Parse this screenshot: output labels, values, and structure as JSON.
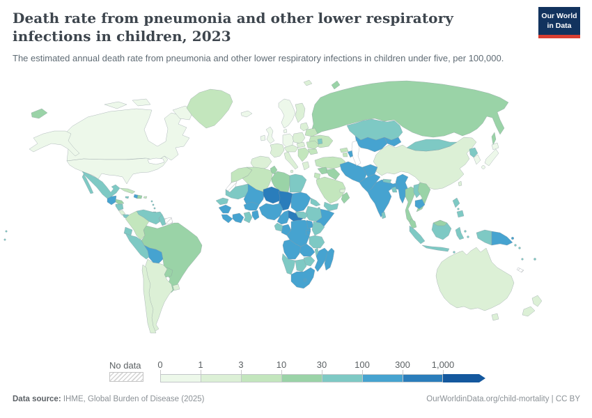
{
  "header": {
    "title": "Death rate from pneumonia and other lower respiratory infections in children, 2023",
    "subtitle": "The estimated annual death rate from pneumonia and other lower respiratory infections in children under five, per 100,000.",
    "logo": {
      "line1": "Our World",
      "line2": "in Data",
      "bg_color": "#12335e",
      "accent_color": "#d93f31"
    }
  },
  "legend": {
    "no_data_label": "No data",
    "ticks": [
      "0",
      "1",
      "3",
      "10",
      "30",
      "100",
      "300",
      "1,000"
    ]
  },
  "chart_data": {
    "type": "choropleth",
    "title": "Death rate from pneumonia and other lower respiratory infections in children, 2023",
    "unit": "deaths per 100,000 children under five",
    "year": "2023",
    "projection": "world",
    "legend_position": "bottom",
    "no_data": {
      "label": "No data",
      "pattern": "diagonal-hatch"
    },
    "bins": [
      {
        "range": "0–1",
        "color": "#edf8ea"
      },
      {
        "range": "1–3",
        "color": "#dcf0d6"
      },
      {
        "range": "3–10",
        "color": "#c3e6bd"
      },
      {
        "range": "10–30",
        "color": "#9ad3a7"
      },
      {
        "range": "30–100",
        "color": "#7ec9c4"
      },
      {
        "range": "100–300",
        "color": "#46a3d0"
      },
      {
        "range": "300–1,000",
        "color": "#2a7dbb"
      },
      {
        "range": "1,000+",
        "color": "#14589e"
      }
    ],
    "regions": [
      {
        "id": "canada",
        "bin": 0
      },
      {
        "id": "alaska",
        "bin": 0
      },
      {
        "id": "usa",
        "bin": 0
      },
      {
        "id": "greenland",
        "bin": 2
      },
      {
        "id": "iceland",
        "bin": 0
      },
      {
        "id": "chukotka-west",
        "bin": 3
      },
      {
        "id": "baja",
        "bin": 4
      },
      {
        "id": "mexico",
        "bin": 4
      },
      {
        "id": "guatemala",
        "bin": 5
      },
      {
        "id": "honduras",
        "bin": 3
      },
      {
        "id": "nicaragua",
        "bin": 4
      },
      {
        "id": "costa-rica",
        "bin": 1
      },
      {
        "id": "panama",
        "bin": 4
      },
      {
        "id": "cuba",
        "bin": 2
      },
      {
        "id": "jamaica",
        "bin": 4
      },
      {
        "id": "haiti",
        "bin": 5
      },
      {
        "id": "dominican-republic",
        "bin": 3
      },
      {
        "id": "puerto-rico",
        "bin": 2
      },
      {
        "id": "lesser-antilles",
        "bin": 4
      },
      {
        "id": "trinidad",
        "bin": 4
      },
      {
        "id": "venezuela",
        "bin": 4
      },
      {
        "id": "colombia",
        "bin": 2
      },
      {
        "id": "guyana",
        "bin": 4
      },
      {
        "id": "suriname",
        "bin": "no-data"
      },
      {
        "id": "ecuador",
        "bin": 4
      },
      {
        "id": "peru",
        "bin": 4
      },
      {
        "id": "bolivia",
        "bin": 5
      },
      {
        "id": "brazil",
        "bin": 3
      },
      {
        "id": "paraguay",
        "bin": 3
      },
      {
        "id": "uruguay",
        "bin": 1
      },
      {
        "id": "argentina",
        "bin": 1
      },
      {
        "id": "chile",
        "bin": 1
      },
      {
        "id": "scandinavia",
        "bin": 0
      },
      {
        "id": "finland",
        "bin": 1
      },
      {
        "id": "uk",
        "bin": 0
      },
      {
        "id": "ireland",
        "bin": 0
      },
      {
        "id": "france",
        "bin": 1
      },
      {
        "id": "iberia",
        "bin": 1
      },
      {
        "id": "germany",
        "bin": 0
      },
      {
        "id": "denmark",
        "bin": 0
      },
      {
        "id": "poland",
        "bin": 1
      },
      {
        "id": "baltics",
        "bin": 1
      },
      {
        "id": "belarus",
        "bin": 2
      },
      {
        "id": "ukraine",
        "bin": 2
      },
      {
        "id": "alpine",
        "bin": 1
      },
      {
        "id": "italy",
        "bin": 1
      },
      {
        "id": "balkans",
        "bin": 2
      },
      {
        "id": "greece",
        "bin": 1
      },
      {
        "id": "romania",
        "bin": 2
      },
      {
        "id": "bulgaria",
        "bin": 2
      },
      {
        "id": "hungary",
        "bin": 1
      },
      {
        "id": "moldova",
        "bin": 4
      },
      {
        "id": "russia",
        "bin": 3
      },
      {
        "id": "svalbard",
        "bin": 1
      },
      {
        "id": "kazakhstan",
        "bin": 4
      },
      {
        "id": "central-asia",
        "bin": 5
      },
      {
        "id": "kyrgyz-tajik",
        "bin": 5
      },
      {
        "id": "georgia",
        "bin": 2
      },
      {
        "id": "armenia",
        "bin": 2
      },
      {
        "id": "azerbaijan",
        "bin": 5
      },
      {
        "id": "turkey",
        "bin": 2
      },
      {
        "id": "syria",
        "bin": 3
      },
      {
        "id": "jordan-israel",
        "bin": 2
      },
      {
        "id": "iraq",
        "bin": 3
      },
      {
        "id": "saudi-arabia",
        "bin": 2
      },
      {
        "id": "yemen",
        "bin": 4
      },
      {
        "id": "oman",
        "bin": 3
      },
      {
        "id": "uae-qatar",
        "bin": 1
      },
      {
        "id": "iran",
        "bin": 5
      },
      {
        "id": "afghanistan",
        "bin": 5
      },
      {
        "id": "pakistan",
        "bin": 5
      },
      {
        "id": "india",
        "bin": 5
      },
      {
        "id": "nepal",
        "bin": 4
      },
      {
        "id": "bangladesh",
        "bin": 4
      },
      {
        "id": "sri-lanka",
        "bin": 4
      },
      {
        "id": "china",
        "bin": 1
      },
      {
        "id": "taiwan",
        "bin": 1
      },
      {
        "id": "mongolia",
        "bin": 4
      },
      {
        "id": "north-korea",
        "bin": 4
      },
      {
        "id": "south-korea",
        "bin": 0
      },
      {
        "id": "japan",
        "bin": 0
      },
      {
        "id": "myanmar",
        "bin": 5
      },
      {
        "id": "thailand",
        "bin": 3
      },
      {
        "id": "laos",
        "bin": 4
      },
      {
        "id": "vietnam",
        "bin": 3
      },
      {
        "id": "cambodia",
        "bin": 5
      },
      {
        "id": "malaysia",
        "bin": 3
      },
      {
        "id": "indonesia",
        "bin": 4
      },
      {
        "id": "png",
        "bin": 5
      },
      {
        "id": "philippines",
        "bin": 4
      },
      {
        "id": "solomon",
        "bin": 4
      },
      {
        "id": "vanuatu",
        "bin": 4
      },
      {
        "id": "fiji",
        "bin": 4
      },
      {
        "id": "new-caledonia",
        "bin": "no-data"
      },
      {
        "id": "pacific-islands",
        "bin": 4
      },
      {
        "id": "australia",
        "bin": 1
      },
      {
        "id": "new-zealand",
        "bin": 1
      },
      {
        "id": "morocco",
        "bin": 2
      },
      {
        "id": "western-sahara",
        "bin": "no-data"
      },
      {
        "id": "algeria",
        "bin": 2
      },
      {
        "id": "tunisia",
        "bin": 3
      },
      {
        "id": "libya",
        "bin": 3
      },
      {
        "id": "egypt",
        "bin": 4
      },
      {
        "id": "mauritania",
        "bin": 4
      },
      {
        "id": "mali",
        "bin": 5
      },
      {
        "id": "niger",
        "bin": 6
      },
      {
        "id": "chad",
        "bin": 6
      },
      {
        "id": "sudan",
        "bin": 5
      },
      {
        "id": "eritrea",
        "bin": 4
      },
      {
        "id": "djibouti",
        "bin": 4
      },
      {
        "id": "ethiopia",
        "bin": 4
      },
      {
        "id": "somalia",
        "bin": 5
      },
      {
        "id": "senegal",
        "bin": 4
      },
      {
        "id": "guinea",
        "bin": 5
      },
      {
        "id": "sierra-leone-liberia",
        "bin": 5
      },
      {
        "id": "ivory-coast",
        "bin": 5
      },
      {
        "id": "ghana",
        "bin": 4
      },
      {
        "id": "togo-benin",
        "bin": 5
      },
      {
        "id": "burkina-faso",
        "bin": 5
      },
      {
        "id": "nigeria",
        "bin": 5
      },
      {
        "id": "cameroon",
        "bin": 5
      },
      {
        "id": "central-african-republic",
        "bin": 6
      },
      {
        "id": "south-sudan",
        "bin": 4
      },
      {
        "id": "gabon",
        "bin": 4
      },
      {
        "id": "congo",
        "bin": 5
      },
      {
        "id": "drc",
        "bin": 5
      },
      {
        "id": "uganda",
        "bin": 5
      },
      {
        "id": "kenya",
        "bin": 4
      },
      {
        "id": "rwanda-burundi",
        "bin": 5
      },
      {
        "id": "tanzania",
        "bin": 4
      },
      {
        "id": "angola",
        "bin": 5
      },
      {
        "id": "zambia",
        "bin": 5
      },
      {
        "id": "malawi",
        "bin": 4
      },
      {
        "id": "mozambique",
        "bin": 5
      },
      {
        "id": "zimbabwe",
        "bin": 4
      },
      {
        "id": "botswana",
        "bin": 4
      },
      {
        "id": "namibia",
        "bin": 4
      },
      {
        "id": "south-africa",
        "bin": 5
      },
      {
        "id": "lesotho",
        "bin": 5
      },
      {
        "id": "madagascar",
        "bin": 5
      }
    ]
  },
  "footer": {
    "source_label": "Data source:",
    "source_text": " IHME, Global Burden of Disease (2025)",
    "right_text": "OurWorldinData.org/child-mortality | CC BY"
  }
}
